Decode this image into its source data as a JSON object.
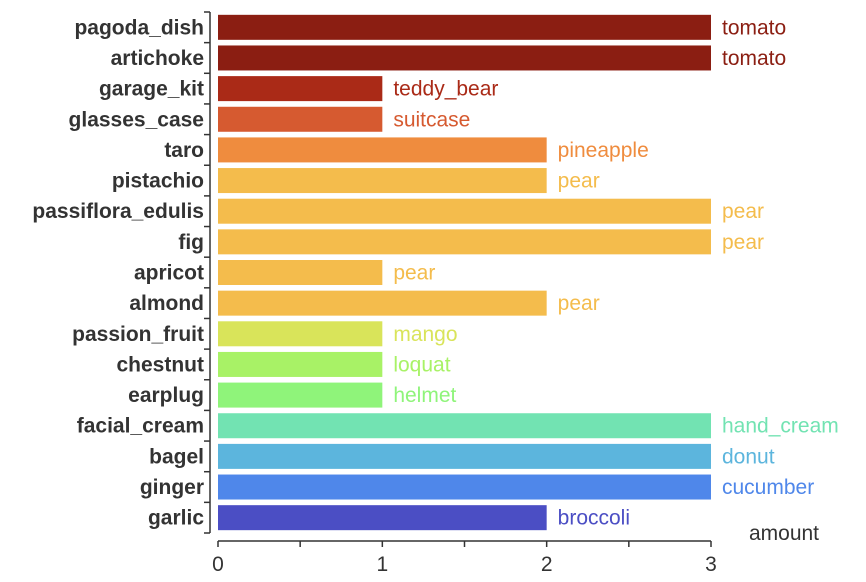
{
  "chart_data": {
    "type": "bar",
    "orientation": "horizontal",
    "categories": [
      "pagoda_dish",
      "artichoke",
      "garage_kit",
      "glasses_case",
      "taro",
      "pistachio",
      "passiflora_edulis",
      "fig",
      "apricot",
      "almond",
      "passion_fruit",
      "chestnut",
      "earplug",
      "facial_cream",
      "bagel",
      "ginger",
      "garlic"
    ],
    "values": [
      3,
      3,
      1,
      1,
      2,
      2,
      3,
      3,
      1,
      2,
      1,
      1,
      1,
      3,
      3,
      3,
      2
    ],
    "bar_labels": [
      "tomato",
      "tomato",
      "teddy_bear",
      "suitcase",
      "pineapple",
      "pear",
      "pear",
      "pear",
      "pear",
      "pear",
      "mango",
      "loquat",
      "helmet",
      "hand_cream",
      "donut",
      "cucumber",
      "broccoli"
    ],
    "colors": [
      "#8b1e12",
      "#8b1e12",
      "#aa2a17",
      "#d65a30",
      "#ef8c3e",
      "#f4bc4c",
      "#f4bc4c",
      "#f4bc4c",
      "#f4bc4c",
      "#f4bc4c",
      "#d9e45a",
      "#a8f266",
      "#8ff47a",
      "#72e3b2",
      "#5cb5dd",
      "#4f87ea",
      "#4b4ec4"
    ],
    "xlabel": "amount",
    "xlim": [
      0,
      3
    ],
    "xticks": [
      "0",
      "1",
      "2",
      "3"
    ],
    "grid": false,
    "legend": "none"
  }
}
